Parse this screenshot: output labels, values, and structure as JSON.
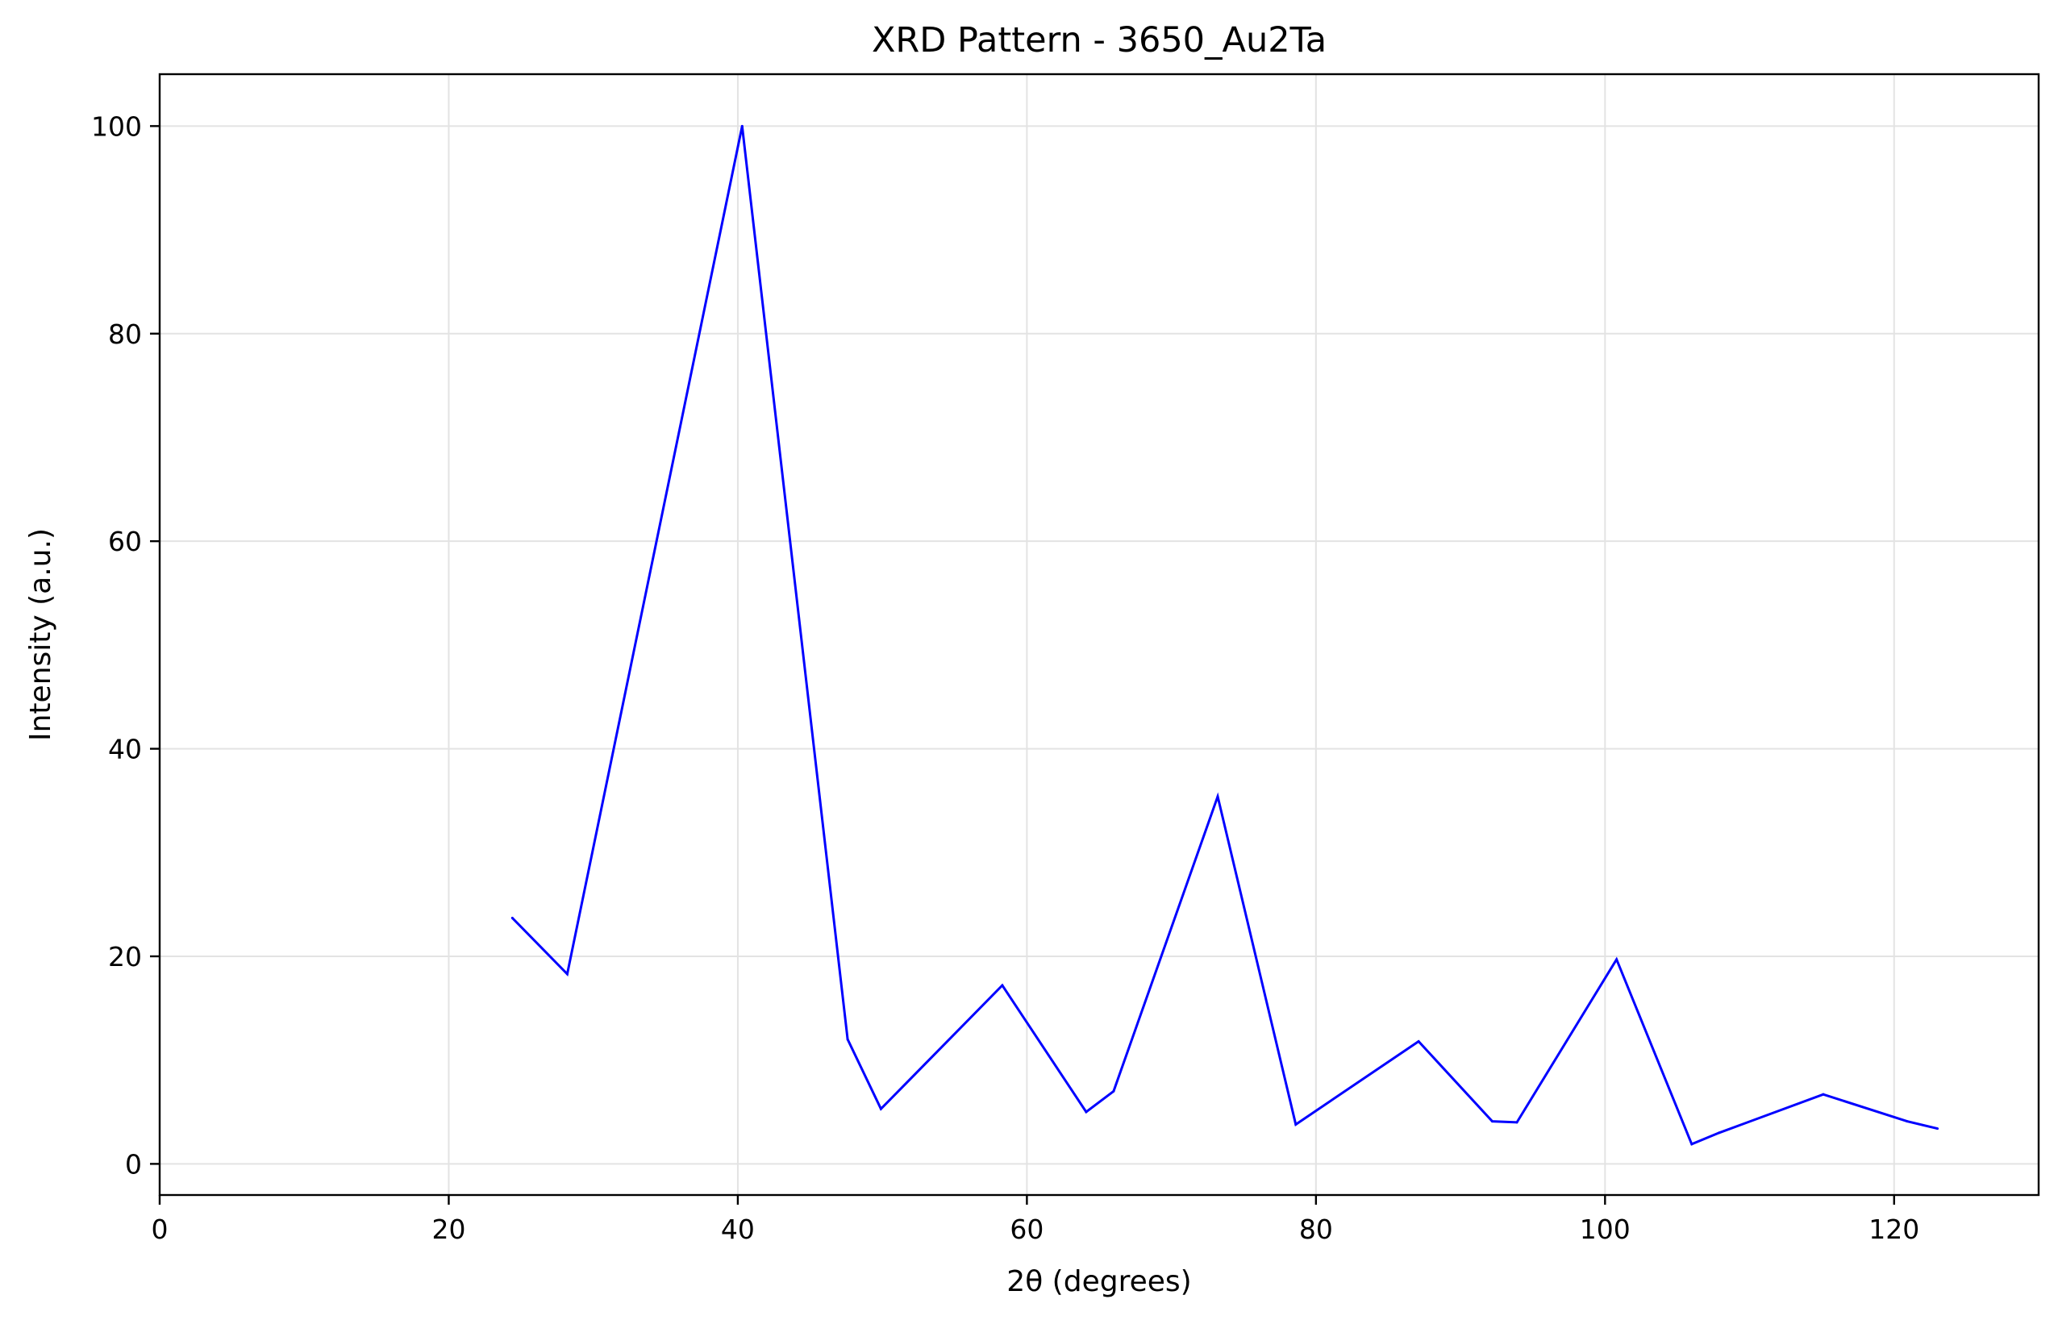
{
  "chart_data": {
    "type": "line",
    "title": "XRD Pattern - 3650_Au2Ta",
    "xlabel": "2θ (degrees)",
    "ylabel": "Intensity (a.u.)",
    "xlim": [
      0,
      130
    ],
    "ylim": [
      -3,
      105
    ],
    "xticks": [
      0,
      20,
      40,
      60,
      80,
      100,
      120
    ],
    "yticks": [
      0,
      20,
      40,
      60,
      80,
      100
    ],
    "grid": true,
    "line_color": "#0000ff",
    "series": [
      {
        "x": [
          24.4,
          28.2,
          40.3,
          47.6,
          49.9,
          58.3,
          64.1,
          66.0,
          73.2,
          78.6,
          87.1,
          92.2,
          93.9,
          100.8,
          106.0,
          107.9,
          115.1,
          120.9,
          123.0
        ],
        "y": [
          23.7,
          18.3,
          100,
          12.0,
          5.3,
          17.2,
          5.0,
          7.0,
          35.4,
          3.8,
          11.8,
          4.1,
          4.0,
          19.7,
          1.9,
          3.0,
          6.7,
          4.1,
          3.4
        ]
      }
    ]
  }
}
